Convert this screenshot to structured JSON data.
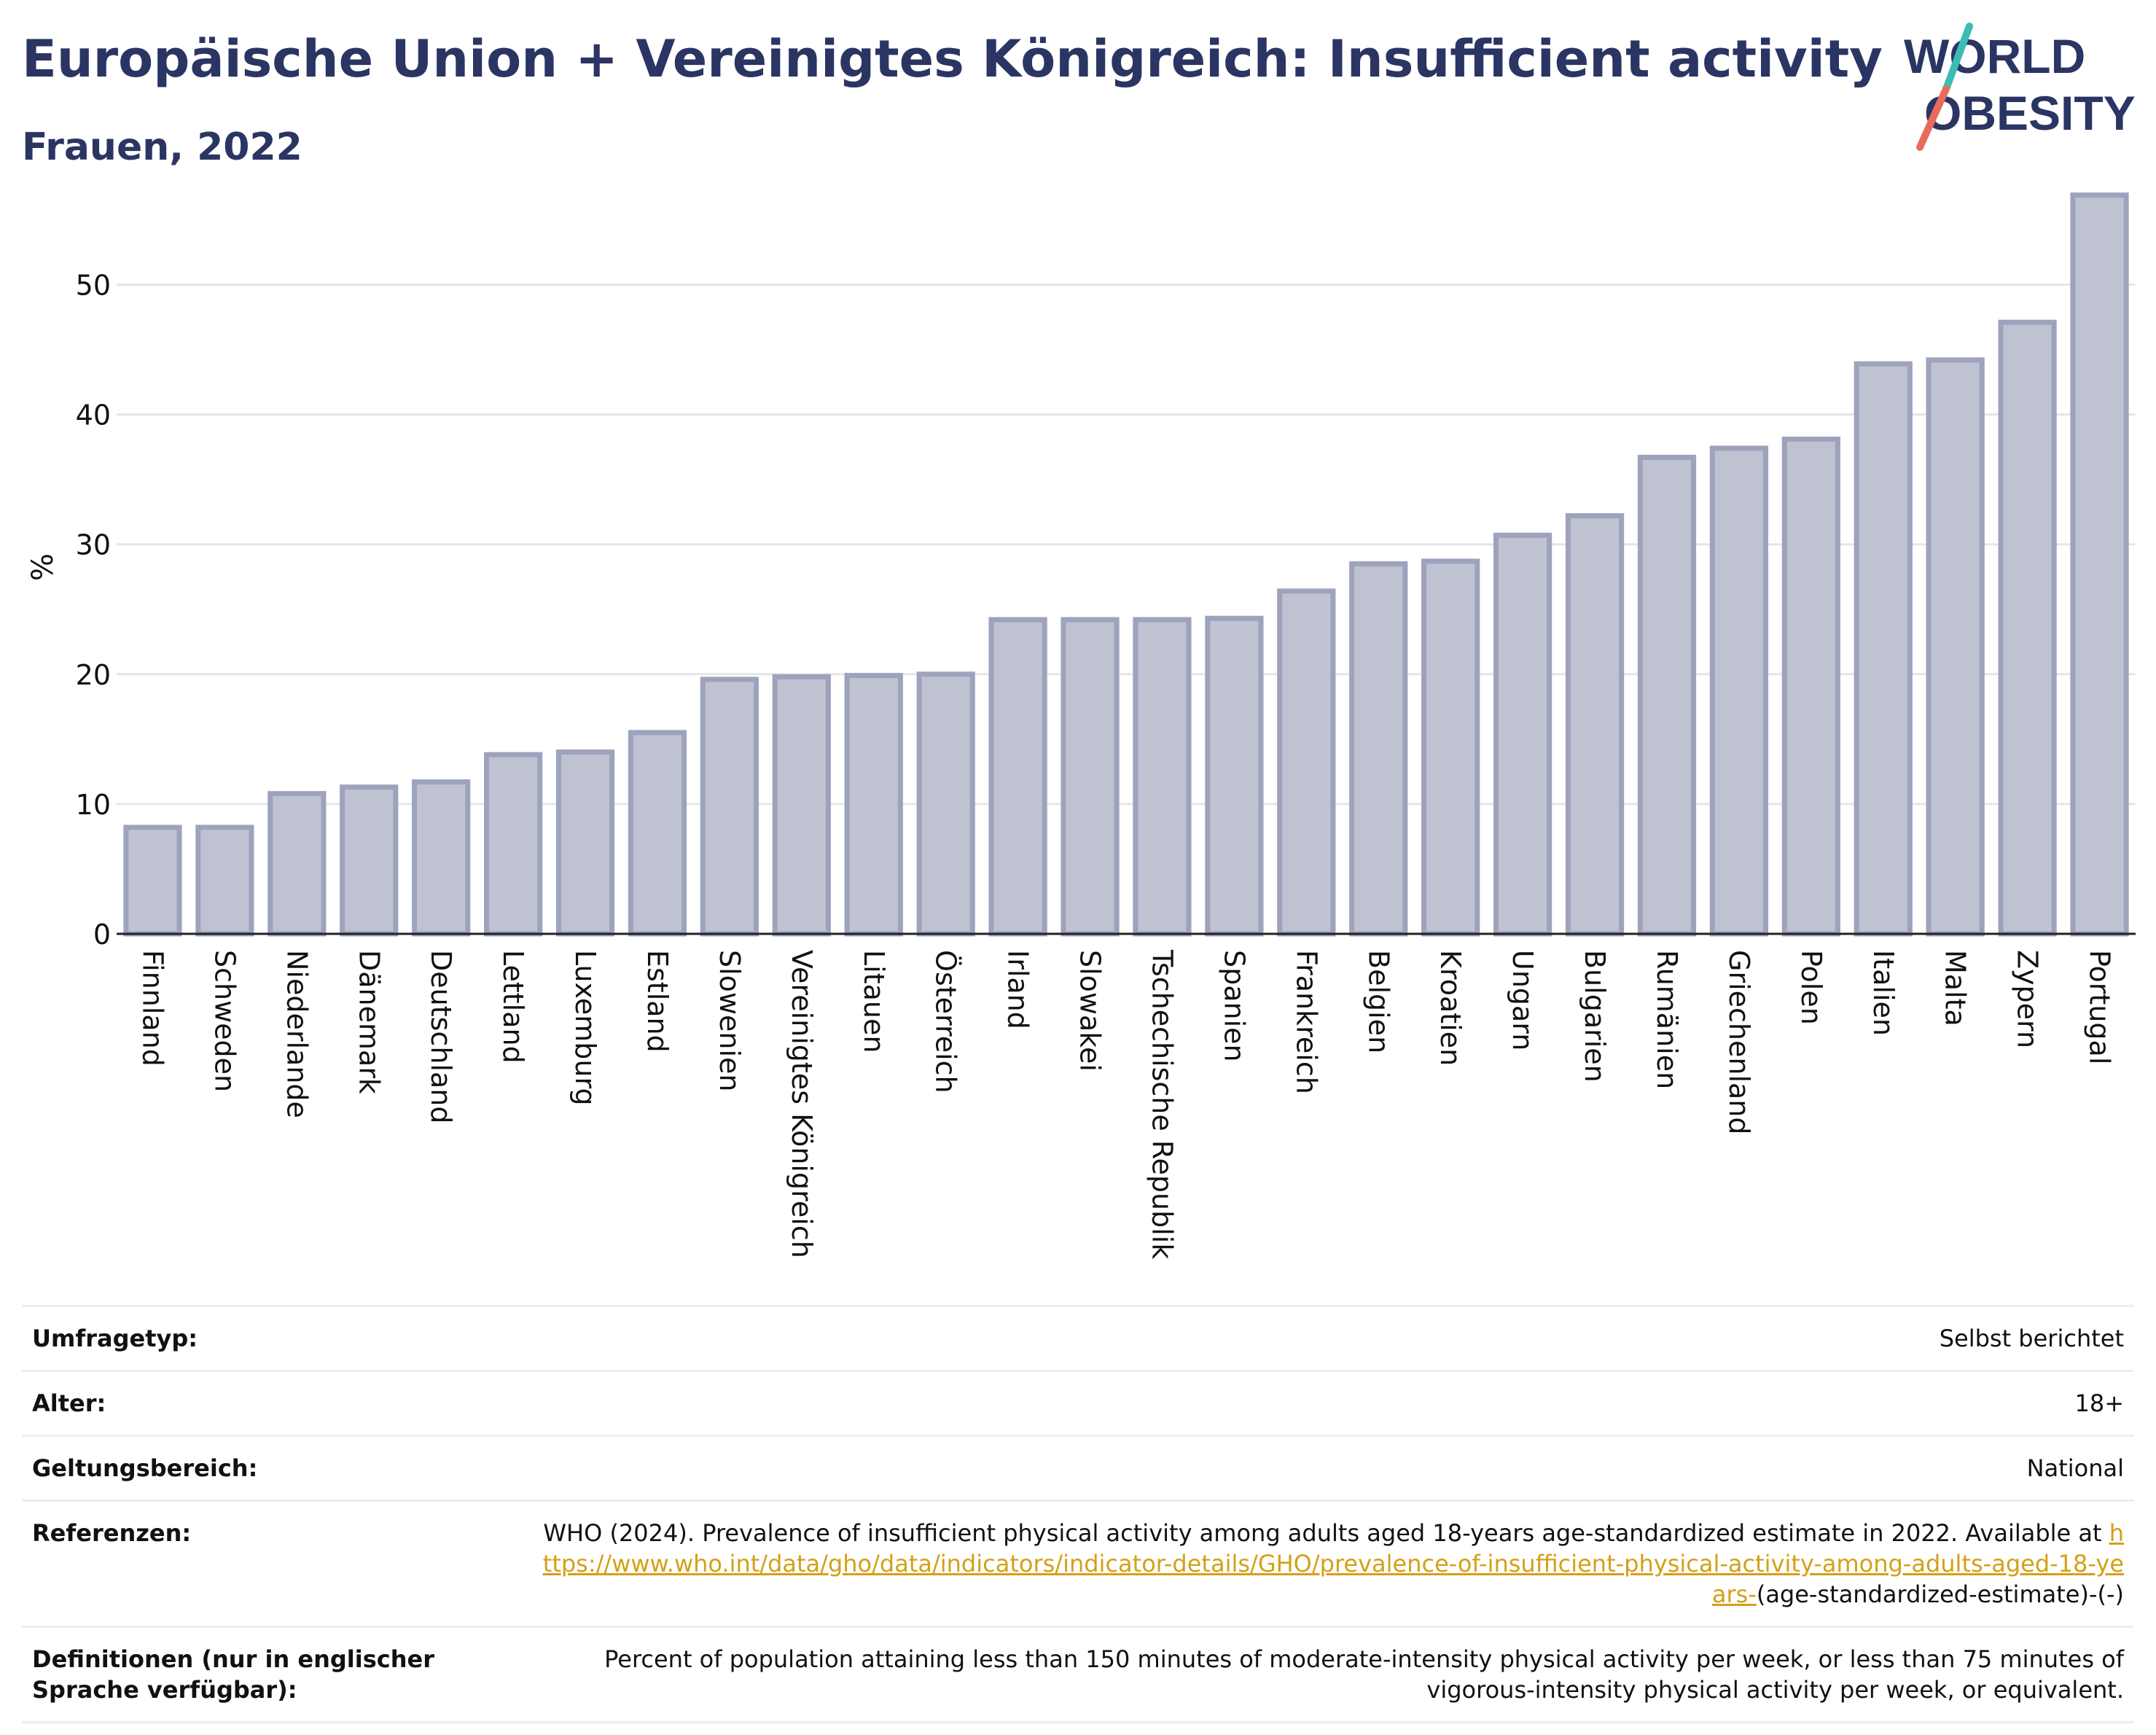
{
  "header": {
    "title": "Europäische Union + Vereinigtes Königreich: Insufficient activity",
    "subtitle": "Frauen, 2022"
  },
  "logo": {
    "line1": "WORLD",
    "line2": "OBESITY"
  },
  "colors": {
    "bar_fill": "#bfc2d1",
    "bar_stroke": "#9da2bd",
    "title": "#2b3563",
    "link": "#d4a017",
    "logo_teal": "#3cbcb4",
    "logo_coral": "#e86c5a"
  },
  "chart_data": {
    "type": "bar",
    "ylabel": "%",
    "ylim": [
      0,
      58
    ],
    "yticks": [
      0,
      10,
      20,
      30,
      40,
      50
    ],
    "grid": true,
    "categories": [
      "Finnland",
      "Schweden",
      "Niederlande",
      "Dänemark",
      "Deutschland",
      "Lettland",
      "Luxemburg",
      "Estland",
      "Slowenien",
      "Vereinigtes Königreich",
      "Litauen",
      "Österreich",
      "Irland",
      "Slowakei",
      "Tschechische Republik",
      "Spanien",
      "Frankreich",
      "Belgien",
      "Kroatien",
      "Ungarn",
      "Bulgarien",
      "Rumänien",
      "Griechenland",
      "Polen",
      "Italien",
      "Malta",
      "Zypern",
      "Portugal"
    ],
    "values": [
      8.2,
      8.2,
      10.8,
      11.3,
      11.7,
      13.8,
      14.0,
      15.5,
      19.6,
      19.8,
      19.9,
      20.0,
      24.2,
      24.2,
      24.2,
      24.3,
      26.4,
      28.5,
      28.7,
      30.7,
      32.2,
      36.7,
      37.4,
      38.1,
      43.9,
      44.2,
      47.1,
      56.9
    ]
  },
  "meta": {
    "survey_label": "Umfragetyp:",
    "survey_value": "Selbst berichtet",
    "age_label": "Alter:",
    "age_value": "18+",
    "scope_label": "Geltungsbereich:",
    "scope_value": "National",
    "ref_label": "Referenzen:",
    "ref_text": "WHO (2024). Prevalence of insufficient physical activity among adults aged 18-years age-standardized estimate in 2022. Available at",
    "ref_link": "https://www.who.int/data/gho/data/indicators/indicator-details/GHO/prevalence-of-insufficient-physical-activity-among-adults-aged-18-years-",
    "ref_suffix": "(age-standardized-estimate)-(-)",
    "def_label": "Definitionen (nur in englischer Sprache verfügbar):",
    "def_value": "Percent of population attaining less than 150 minutes of moderate-intensity physical activity per week, or less than 75 minutes of vigorous-intensity physical activity per week, or equivalent."
  }
}
